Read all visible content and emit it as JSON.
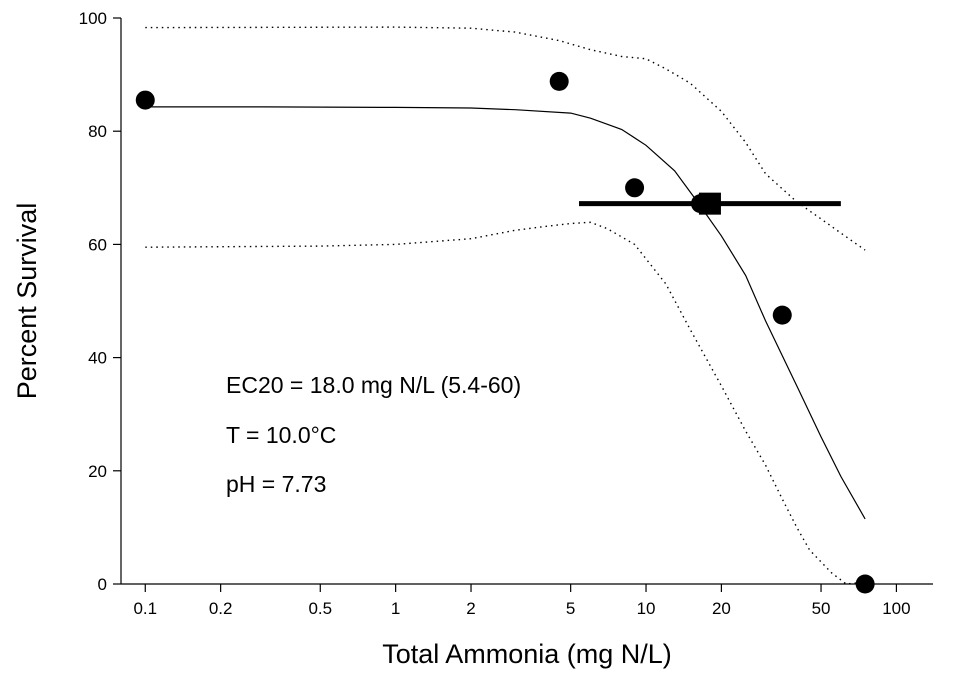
{
  "chart_data": {
    "type": "scatter",
    "title": "",
    "xlabel": "Total Ammonia (mg N/L)",
    "ylabel": "Percent Survival",
    "x_scale": "log",
    "xlim": [
      0.08,
      140
    ],
    "ylim": [
      0,
      100
    ],
    "x_ticks": [
      0.1,
      0.2,
      0.5,
      1,
      2,
      5,
      10,
      20,
      50,
      100
    ],
    "x_tick_labels": [
      "0.1",
      "0.2",
      "0.5",
      "1",
      "2",
      "5",
      "10",
      "20",
      "50",
      "100"
    ],
    "y_ticks": [
      0,
      20,
      40,
      60,
      80,
      100
    ],
    "y_tick_labels": [
      "0",
      "20",
      "40",
      "60",
      "80",
      "100"
    ],
    "grid": false,
    "points": [
      {
        "x": 0.1,
        "y": 85.5
      },
      {
        "x": 4.5,
        "y": 88.8
      },
      {
        "x": 9,
        "y": 70
      },
      {
        "x": 16.5,
        "y": 67.2
      },
      {
        "x": 35,
        "y": 47.5
      },
      {
        "x": 75,
        "y": 0
      }
    ],
    "ec20_marker": {
      "x": 18.0,
      "y": 67.2,
      "x_low": 5.4,
      "x_high": 60
    },
    "fit_line": [
      {
        "x": 0.1,
        "y": 84.3
      },
      {
        "x": 0.3,
        "y": 84.3
      },
      {
        "x": 1,
        "y": 84.2
      },
      {
        "x": 2,
        "y": 84.1
      },
      {
        "x": 3,
        "y": 83.8
      },
      {
        "x": 5,
        "y": 83.2
      },
      {
        "x": 6,
        "y": 82.3
      },
      {
        "x": 8,
        "y": 80.3
      },
      {
        "x": 10,
        "y": 77.5
      },
      {
        "x": 13,
        "y": 73
      },
      {
        "x": 16,
        "y": 67.6
      },
      {
        "x": 20,
        "y": 61.5
      },
      {
        "x": 25,
        "y": 54.5
      },
      {
        "x": 30,
        "y": 46.5
      },
      {
        "x": 40,
        "y": 35
      },
      {
        "x": 50,
        "y": 26
      },
      {
        "x": 60,
        "y": 19
      },
      {
        "x": 75,
        "y": 11.5
      }
    ],
    "ci_upper": [
      {
        "x": 0.1,
        "y": 98.3
      },
      {
        "x": 1,
        "y": 98.4
      },
      {
        "x": 2,
        "y": 98.2
      },
      {
        "x": 3,
        "y": 97.5
      },
      {
        "x": 4.5,
        "y": 96
      },
      {
        "x": 6,
        "y": 94.4
      },
      {
        "x": 8,
        "y": 93.2
      },
      {
        "x": 10,
        "y": 92.8
      },
      {
        "x": 12,
        "y": 91
      },
      {
        "x": 15,
        "y": 88.5
      },
      {
        "x": 20,
        "y": 83.5
      },
      {
        "x": 25,
        "y": 78
      },
      {
        "x": 30,
        "y": 72.5
      },
      {
        "x": 40,
        "y": 67.5
      },
      {
        "x": 50,
        "y": 64.5
      },
      {
        "x": 60,
        "y": 62
      },
      {
        "x": 75,
        "y": 59
      }
    ],
    "ci_lower": [
      {
        "x": 0.1,
        "y": 59.5
      },
      {
        "x": 0.5,
        "y": 59.7
      },
      {
        "x": 1,
        "y": 60
      },
      {
        "x": 2,
        "y": 61
      },
      {
        "x": 3,
        "y": 62.5
      },
      {
        "x": 4,
        "y": 63.2
      },
      {
        "x": 5,
        "y": 63.7
      },
      {
        "x": 6,
        "y": 63.9
      },
      {
        "x": 7,
        "y": 62.8
      },
      {
        "x": 9,
        "y": 60
      },
      {
        "x": 12,
        "y": 53
      },
      {
        "x": 15,
        "y": 45
      },
      {
        "x": 20,
        "y": 35
      },
      {
        "x": 25,
        "y": 27
      },
      {
        "x": 30,
        "y": 21
      },
      {
        "x": 35,
        "y": 15
      },
      {
        "x": 40,
        "y": 10
      },
      {
        "x": 45,
        "y": 6
      },
      {
        "x": 55,
        "y": 2
      },
      {
        "x": 63,
        "y": 0
      },
      {
        "x": 70,
        "y": 0.2
      },
      {
        "x": 75,
        "y": 1
      }
    ],
    "annotations": [
      "EC20 = 18.0 mg N/L (5.4-60)",
      "T = 10.0°C",
      "pH = 7.73"
    ]
  }
}
